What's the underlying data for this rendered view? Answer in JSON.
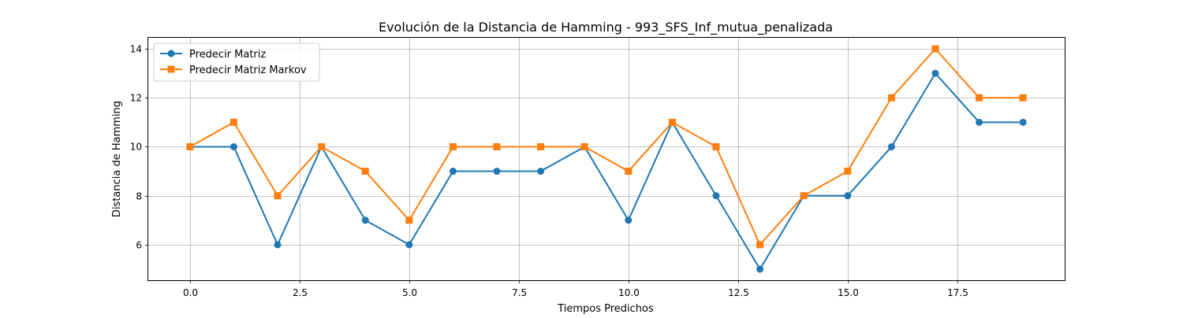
{
  "chart_data": {
    "type": "line",
    "title": "Evolución de la Distancia de Hamming - 993_SFS_Inf_mutua_penalizada",
    "xlabel": "Tiempos Predichos",
    "ylabel": "Distancia de Hamming",
    "xlim": [
      -0.95,
      19.95
    ],
    "ylim": [
      4.55,
      14.45
    ],
    "x_ticks": [
      0.0,
      2.5,
      5.0,
      7.5,
      10.0,
      12.5,
      15.0,
      17.5
    ],
    "x_tick_labels": [
      "0.0",
      "2.5",
      "5.0",
      "7.5",
      "10.0",
      "12.5",
      "15.0",
      "17.5"
    ],
    "y_ticks": [
      6,
      8,
      10,
      12,
      14
    ],
    "y_tick_labels": [
      "6",
      "8",
      "10",
      "12",
      "14"
    ],
    "grid": true,
    "legend_position": "top-left",
    "x": [
      0,
      1,
      2,
      3,
      4,
      5,
      6,
      7,
      8,
      9,
      10,
      11,
      12,
      13,
      14,
      15,
      16,
      17,
      18,
      19
    ],
    "series": [
      {
        "name": "Predecir Matriz",
        "color": "#1f77b4",
        "marker": "circle",
        "values": [
          10,
          10,
          6,
          10,
          7,
          6,
          9,
          9,
          9,
          10,
          7,
          11,
          8,
          5,
          8,
          8,
          10,
          13,
          11,
          11
        ]
      },
      {
        "name": "Predecir Matriz Markov",
        "color": "#ff7f0e",
        "marker": "square",
        "values": [
          10,
          11,
          8,
          10,
          9,
          7,
          10,
          10,
          10,
          10,
          9,
          11,
          10,
          6,
          8,
          9,
          12,
          14,
          12,
          12
        ]
      }
    ]
  }
}
